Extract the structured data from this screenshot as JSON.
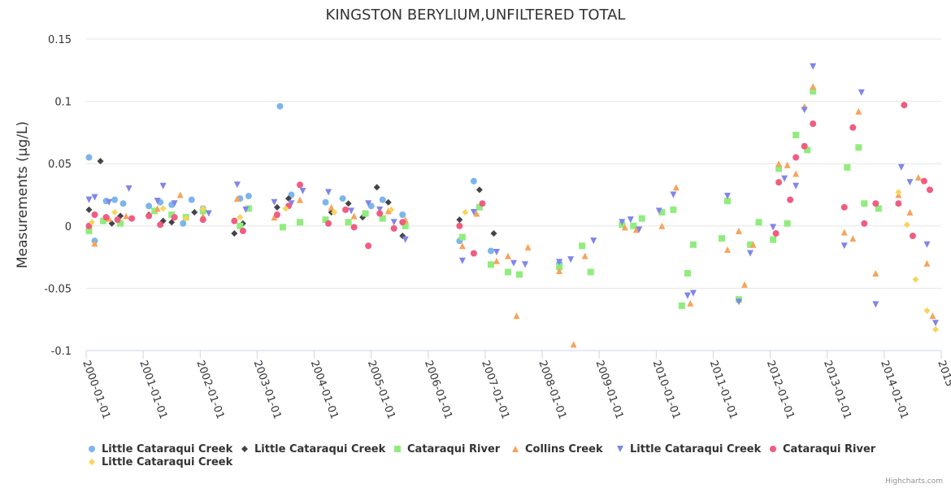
{
  "credits": "Highcharts.com",
  "chart_data": {
    "type": "scatter",
    "title": "KINGSTON BERYLIUM,UNFILTERED TOTAL",
    "xlabel": "",
    "ylabel": "Measurements (µg/L)",
    "xlim": [
      2000.0,
      2015.0
    ],
    "ylim": [
      -0.1,
      0.15
    ],
    "yticks": [
      {
        "value": -0.1,
        "label": "-0.1"
      },
      {
        "value": -0.05,
        "label": "-0.05"
      },
      {
        "value": 0,
        "label": "0"
      },
      {
        "value": 0.05,
        "label": "0.05"
      },
      {
        "value": 0.1,
        "label": "0.1"
      },
      {
        "value": 0.15,
        "label": "0.15"
      }
    ],
    "xticks": [
      {
        "value": 2000,
        "label": "2000-01-01"
      },
      {
        "value": 2001,
        "label": "2001-01-01"
      },
      {
        "value": 2002,
        "label": "2002-01-01"
      },
      {
        "value": 2003,
        "label": "2003-01-01"
      },
      {
        "value": 2004,
        "label": "2004-01-01"
      },
      {
        "value": 2005,
        "label": "2005-01-01"
      },
      {
        "value": 2006,
        "label": "2006-01-01"
      },
      {
        "value": 2007,
        "label": "2007-01-01"
      },
      {
        "value": 2008,
        "label": "2008-01-01"
      },
      {
        "value": 2009,
        "label": "2009-01-01"
      },
      {
        "value": 2010,
        "label": "2010-01-01"
      },
      {
        "value": 2011,
        "label": "2011-01-01"
      },
      {
        "value": 2012,
        "label": "2012-01-01"
      },
      {
        "value": 2013,
        "label": "2013-01-01"
      },
      {
        "value": 2014,
        "label": "2014-01-01"
      },
      {
        "value": 2015,
        "label": "2015"
      }
    ],
    "grid": true,
    "legend_position": "bottom",
    "series": [
      {
        "name": "Little Cataraqui Creek",
        "color": "#7cb5ec",
        "marker": "circle",
        "points": [
          [
            2000.05,
            0.055
          ],
          [
            2000.15,
            -0.012
          ],
          [
            2000.35,
            0.02
          ],
          [
            2000.5,
            0.021
          ],
          [
            2000.65,
            0.018
          ],
          [
            2001.1,
            0.016
          ],
          [
            2001.3,
            0.019
          ],
          [
            2001.5,
            0.017
          ],
          [
            2001.7,
            0.002
          ],
          [
            2001.85,
            0.021
          ],
          [
            2002.05,
            0.014
          ],
          [
            2002.7,
            0.022
          ],
          [
            2002.85,
            0.024
          ],
          [
            2003.4,
            0.096
          ],
          [
            2003.6,
            0.025
          ],
          [
            2004.2,
            0.019
          ],
          [
            2004.5,
            0.022
          ],
          [
            2005.0,
            0.016
          ],
          [
            2005.2,
            0.021
          ],
          [
            2005.55,
            0.009
          ],
          [
            2006.55,
            -0.012
          ],
          [
            2006.8,
            0.036
          ],
          [
            2007.1,
            -0.02
          ],
          [
            2008.3,
            -0.03
          ]
        ]
      },
      {
        "name": "Little Cataraqui Creek",
        "color": "#434348",
        "marker": "diamond",
        "points": [
          [
            2000.05,
            0.013
          ],
          [
            2000.25,
            0.052
          ],
          [
            2000.45,
            0.002
          ],
          [
            2000.6,
            0.008
          ],
          [
            2001.1,
            0.009
          ],
          [
            2001.35,
            0.004
          ],
          [
            2001.5,
            0.003
          ],
          [
            2001.9,
            0.011
          ],
          [
            2002.6,
            -0.006
          ],
          [
            2002.75,
            0.002
          ],
          [
            2003.35,
            0.015
          ],
          [
            2003.55,
            0.022
          ],
          [
            2004.3,
            0.011
          ],
          [
            2004.6,
            0.018
          ],
          [
            2004.85,
            0.007
          ],
          [
            2005.1,
            0.031
          ],
          [
            2005.3,
            0.019
          ],
          [
            2005.55,
            -0.008
          ],
          [
            2006.55,
            0.005
          ],
          [
            2006.9,
            0.029
          ],
          [
            2007.15,
            -0.006
          ]
        ]
      },
      {
        "name": "Cataraqui River",
        "color": "#90ed7d",
        "marker": "square",
        "points": [
          [
            2000.05,
            -0.004
          ],
          [
            2000.3,
            0.004
          ],
          [
            2000.6,
            0.002
          ],
          [
            2001.2,
            0.012
          ],
          [
            2001.5,
            0.009
          ],
          [
            2001.75,
            0.007
          ],
          [
            2002.05,
            0.012
          ],
          [
            2002.7,
            0.0
          ],
          [
            2002.85,
            0.014
          ],
          [
            2003.45,
            -0.001
          ],
          [
            2003.75,
            0.003
          ],
          [
            2004.2,
            0.005
          ],
          [
            2004.6,
            0.003
          ],
          [
            2004.9,
            0.01
          ],
          [
            2005.2,
            0.006
          ],
          [
            2005.6,
            0.0
          ],
          [
            2006.6,
            -0.009
          ],
          [
            2006.9,
            0.015
          ],
          [
            2007.1,
            -0.031
          ],
          [
            2007.4,
            -0.037
          ],
          [
            2007.6,
            -0.039
          ],
          [
            2008.3,
            -0.033
          ],
          [
            2008.7,
            -0.016
          ],
          [
            2008.85,
            -0.037
          ],
          [
            2009.4,
            0.001
          ],
          [
            2009.6,
            0.0
          ],
          [
            2009.75,
            0.006
          ],
          [
            2010.1,
            0.011
          ],
          [
            2010.3,
            0.013
          ],
          [
            2010.45,
            -0.064
          ],
          [
            2010.55,
            -0.038
          ],
          [
            2010.65,
            -0.015
          ],
          [
            2011.15,
            -0.01
          ],
          [
            2011.25,
            0.02
          ],
          [
            2011.45,
            -0.059
          ],
          [
            2011.65,
            -0.015
          ],
          [
            2011.8,
            0.003
          ],
          [
            2012.05,
            -0.011
          ],
          [
            2012.15,
            0.046
          ],
          [
            2012.3,
            0.002
          ],
          [
            2012.45,
            0.073
          ],
          [
            2012.65,
            0.061
          ],
          [
            2012.75,
            0.108
          ],
          [
            2013.35,
            0.047
          ],
          [
            2013.55,
            0.063
          ],
          [
            2013.65,
            0.018
          ],
          [
            2013.9,
            0.014
          ]
        ]
      },
      {
        "name": "Collins Creek",
        "color": "#f7a35c",
        "marker": "triangle",
        "points": [
          [
            2000.15,
            -0.014
          ],
          [
            2000.4,
            0.006
          ],
          [
            2000.7,
            0.008
          ],
          [
            2001.25,
            0.014
          ],
          [
            2001.65,
            0.025
          ],
          [
            2002.05,
            0.008
          ],
          [
            2002.65,
            0.022
          ],
          [
            2003.3,
            0.007
          ],
          [
            2003.75,
            0.021
          ],
          [
            2004.3,
            0.015
          ],
          [
            2004.7,
            0.008
          ],
          [
            2005.3,
            0.012
          ],
          [
            2005.6,
            0.005
          ],
          [
            2006.6,
            -0.016
          ],
          [
            2006.85,
            0.01
          ],
          [
            2007.2,
            -0.028
          ],
          [
            2007.4,
            -0.024
          ],
          [
            2007.55,
            -0.072
          ],
          [
            2007.75,
            -0.017
          ],
          [
            2008.3,
            -0.036
          ],
          [
            2008.55,
            -0.095
          ],
          [
            2008.75,
            -0.024
          ],
          [
            2009.45,
            -0.001
          ],
          [
            2009.65,
            -0.003
          ],
          [
            2010.1,
            0.0
          ],
          [
            2010.35,
            0.031
          ],
          [
            2010.6,
            -0.062
          ],
          [
            2011.25,
            -0.019
          ],
          [
            2011.45,
            -0.004
          ],
          [
            2011.55,
            -0.047
          ],
          [
            2011.7,
            -0.015
          ],
          [
            2012.15,
            0.05
          ],
          [
            2012.3,
            0.049
          ],
          [
            2012.45,
            0.042
          ],
          [
            2012.6,
            0.096
          ],
          [
            2012.75,
            0.112
          ],
          [
            2013.3,
            -0.005
          ],
          [
            2013.45,
            -0.01
          ],
          [
            2013.55,
            0.092
          ],
          [
            2013.85,
            -0.038
          ],
          [
            2014.25,
            0.025
          ],
          [
            2014.45,
            0.011
          ],
          [
            2014.6,
            0.039
          ],
          [
            2014.75,
            -0.03
          ],
          [
            2014.85,
            -0.072
          ]
        ]
      },
      {
        "name": "Little Cataraqui Creek",
        "color": "#8085e9",
        "marker": "triangle-down",
        "points": [
          [
            2000.05,
            0.021
          ],
          [
            2000.15,
            0.023
          ],
          [
            2000.4,
            0.019
          ],
          [
            2000.75,
            0.03
          ],
          [
            2001.25,
            0.02
          ],
          [
            2001.35,
            0.032
          ],
          [
            2001.55,
            0.018
          ],
          [
            2002.15,
            0.01
          ],
          [
            2002.65,
            0.033
          ],
          [
            2002.8,
            0.013
          ],
          [
            2003.3,
            0.019
          ],
          [
            2003.6,
            0.018
          ],
          [
            2003.8,
            0.028
          ],
          [
            2004.25,
            0.027
          ],
          [
            2004.65,
            0.012
          ],
          [
            2004.95,
            0.018
          ],
          [
            2005.15,
            0.013
          ],
          [
            2005.4,
            0.003
          ],
          [
            2005.6,
            -0.011
          ],
          [
            2006.6,
            -0.028
          ],
          [
            2006.8,
            0.011
          ],
          [
            2007.2,
            -0.021
          ],
          [
            2007.5,
            -0.03
          ],
          [
            2007.7,
            -0.031
          ],
          [
            2008.3,
            -0.029
          ],
          [
            2008.5,
            -0.027
          ],
          [
            2008.9,
            -0.012
          ],
          [
            2009.4,
            0.003
          ],
          [
            2009.55,
            0.005
          ],
          [
            2009.7,
            -0.003
          ],
          [
            2010.05,
            0.012
          ],
          [
            2010.3,
            0.025
          ],
          [
            2010.55,
            -0.056
          ],
          [
            2010.65,
            -0.054
          ],
          [
            2011.25,
            0.024
          ],
          [
            2011.45,
            -0.061
          ],
          [
            2011.65,
            -0.022
          ],
          [
            2012.05,
            -0.001
          ],
          [
            2012.25,
            0.038
          ],
          [
            2012.45,
            0.032
          ],
          [
            2012.6,
            0.093
          ],
          [
            2012.75,
            0.128
          ],
          [
            2013.3,
            -0.016
          ],
          [
            2013.6,
            0.107
          ],
          [
            2013.85,
            -0.063
          ],
          [
            2014.3,
            0.047
          ],
          [
            2014.45,
            0.035
          ],
          [
            2014.75,
            -0.015
          ],
          [
            2014.9,
            -0.078
          ]
        ]
      },
      {
        "name": "Cataraqui River",
        "color": "#f15c80",
        "marker": "circle",
        "points": [
          [
            2000.05,
            0.0
          ],
          [
            2000.15,
            0.009
          ],
          [
            2000.35,
            0.007
          ],
          [
            2000.55,
            0.005
          ],
          [
            2000.8,
            0.006
          ],
          [
            2001.1,
            0.008
          ],
          [
            2001.3,
            0.001
          ],
          [
            2001.55,
            0.007
          ],
          [
            2002.05,
            0.005
          ],
          [
            2002.6,
            0.004
          ],
          [
            2002.75,
            -0.004
          ],
          [
            2003.35,
            0.009
          ],
          [
            2003.55,
            0.016
          ],
          [
            2003.75,
            0.033
          ],
          [
            2004.25,
            0.002
          ],
          [
            2004.55,
            0.013
          ],
          [
            2004.7,
            -0.001
          ],
          [
            2004.95,
            -0.016
          ],
          [
            2005.15,
            0.01
          ],
          [
            2005.4,
            -0.002
          ],
          [
            2005.55,
            0.003
          ],
          [
            2006.55,
            0.0
          ],
          [
            2006.8,
            -0.022
          ],
          [
            2006.95,
            0.018
          ],
          [
            2012.1,
            -0.006
          ],
          [
            2012.15,
            0.035
          ],
          [
            2012.35,
            0.021
          ],
          [
            2012.45,
            0.055
          ],
          [
            2012.6,
            0.064
          ],
          [
            2012.75,
            0.082
          ],
          [
            2013.3,
            0.015
          ],
          [
            2013.45,
            0.079
          ],
          [
            2013.65,
            0.002
          ],
          [
            2013.85,
            0.018
          ],
          [
            2014.25,
            0.018
          ],
          [
            2014.35,
            0.097
          ],
          [
            2014.5,
            -0.008
          ],
          [
            2014.7,
            0.036
          ],
          [
            2014.8,
            0.029
          ]
        ]
      },
      {
        "name": "Little Cataraqui Creek",
        "color": "#f7d55c",
        "marker": "diamond",
        "points": [
          [
            2000.1,
            0.003
          ],
          [
            2000.5,
            0.011
          ],
          [
            2001.35,
            0.014
          ],
          [
            2001.75,
            0.006
          ],
          [
            2002.05,
            0.014
          ],
          [
            2002.7,
            0.007
          ],
          [
            2003.5,
            0.014
          ],
          [
            2004.35,
            0.011
          ],
          [
            2005.35,
            0.013
          ],
          [
            2006.65,
            0.011
          ],
          [
            2014.25,
            0.027
          ],
          [
            2014.4,
            0.001
          ],
          [
            2014.55,
            -0.043
          ],
          [
            2014.75,
            -0.068
          ],
          [
            2014.9,
            -0.083
          ]
        ]
      }
    ]
  }
}
